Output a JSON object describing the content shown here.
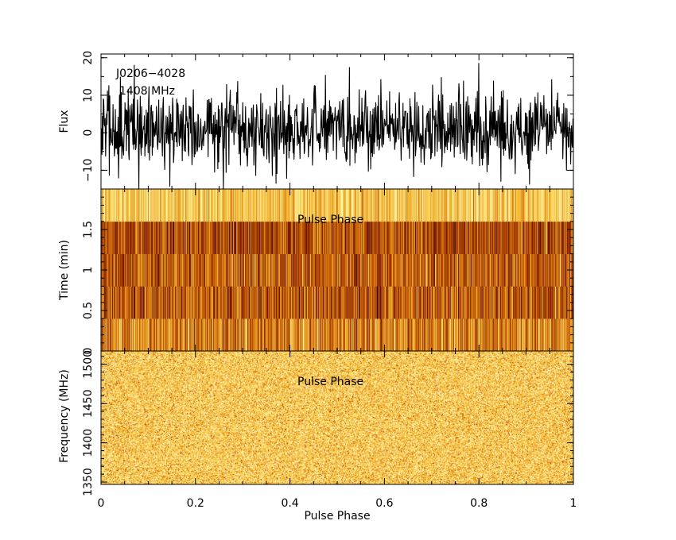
{
  "chart_data": [
    {
      "type": "line",
      "panel": "pulse-profile",
      "title": "",
      "annotation_lines": [
        "J0206−4028",
        "1408 MHz"
      ],
      "xlabel": "",
      "ylabel": "Flux",
      "xlim": [
        0,
        1
      ],
      "ylim": [
        -15,
        21
      ],
      "y_ticks": [
        20,
        10,
        0,
        -10
      ],
      "y_tick_labels": [
        "20",
        "10",
        "0",
        "−10"
      ],
      "baseline_mean": 1.0,
      "noise_sigma": 5.0,
      "notable_peaks": [
        {
          "phase": 0.07,
          "flux": 18
        },
        {
          "phase": 0.8,
          "flux": 18.5
        }
      ],
      "notable_minima": [
        {
          "phase": 0.37,
          "flux": -13.5
        },
        {
          "phase": 0.24,
          "flux": -10.5
        }
      ],
      "n_bins": 1024,
      "line_color": "#000000"
    },
    {
      "type": "heatmap",
      "panel": "time-vs-phase",
      "annotation": "Pulse Phase",
      "xlabel": "",
      "ylabel": "Time (min)",
      "xlim": [
        0,
        1
      ],
      "ylim": [
        0,
        2
      ],
      "y_ticks": [
        0,
        0.5,
        1,
        1.5
      ],
      "y_tick_labels": [
        "0",
        "0.5",
        "1",
        "1.5"
      ],
      "sub_integrations": 5,
      "n_phase_bins": 1024,
      "colormap": [
        "#3d0000",
        "#7a1a00",
        "#b84a00",
        "#e08a1a",
        "#f7c43e",
        "#fff6a8"
      ],
      "subint_mean_level": [
        0.58,
        0.44,
        0.46,
        0.4,
        0.82
      ],
      "subint_spread": [
        0.22,
        0.2,
        0.2,
        0.2,
        0.16
      ]
    },
    {
      "type": "heatmap",
      "panel": "frequency-vs-phase",
      "annotation": "Pulse Phase",
      "xlabel": "Pulse Phase",
      "ylabel": "Frequency (MHz)",
      "xlim": [
        0,
        1
      ],
      "ylim": [
        1347,
        1517
      ],
      "y_ticks": [
        1350,
        1400,
        1450,
        1500
      ],
      "y_tick_labels": [
        "1350",
        "1400",
        "1450",
        "1500"
      ],
      "x_ticks": [
        0,
        0.2,
        0.4,
        0.6,
        0.8,
        1
      ],
      "x_tick_labels": [
        "0",
        "0.2",
        "0.4",
        "0.6",
        "0.8",
        "1"
      ],
      "n_channels": 170,
      "n_phase_bins": 600,
      "colormap": [
        "#9a1f00",
        "#d35a00",
        "#ea9a22",
        "#f6c640",
        "#fbe27a",
        "#fff6c4"
      ],
      "mean_level": 0.66,
      "spread": 0.24
    }
  ]
}
